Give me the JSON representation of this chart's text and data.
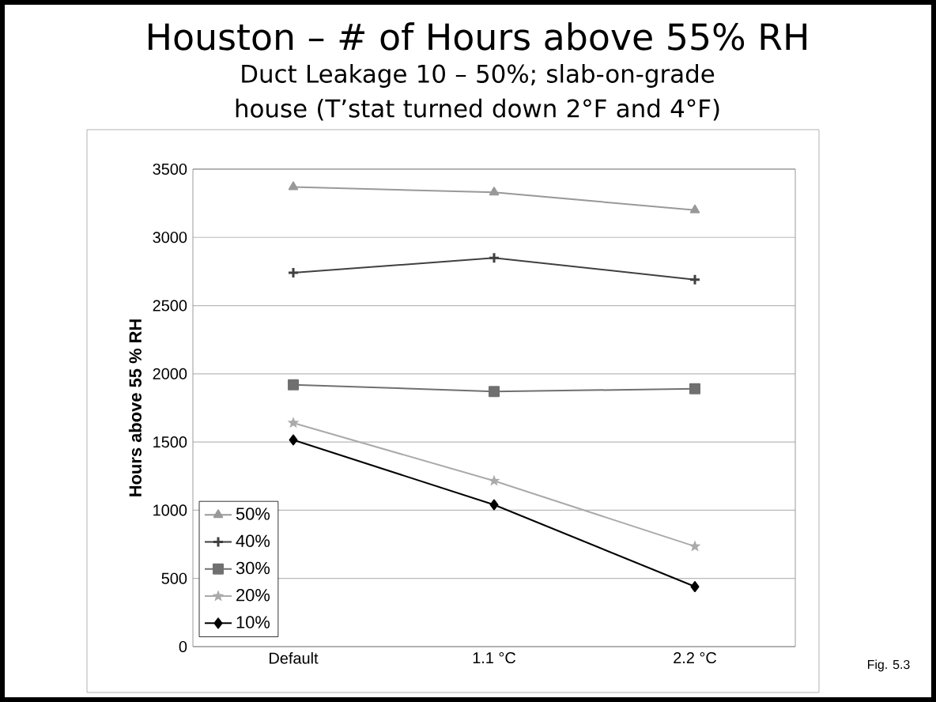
{
  "chart_data": {
    "type": "line",
    "title": "Houston – # of Hours above 55% RH",
    "subtitle": "Duct Leakage 10 – 50%; slab-on-grade house (T’stat turned down 2°F and 4°F)",
    "ylabel": "Hours above 55 % RH",
    "categories": [
      "Default",
      "1.1 °C",
      "2.2 °C"
    ],
    "series": [
      {
        "name": "50%",
        "color": "#999999",
        "marker": "triangle",
        "values": [
          3370,
          3330,
          3200
        ]
      },
      {
        "name": "40%",
        "color": "#404040",
        "marker": "cross",
        "values": [
          2740,
          2850,
          2690
        ]
      },
      {
        "name": "30%",
        "color": "#707070",
        "marker": "square",
        "values": [
          1920,
          1870,
          1890
        ]
      },
      {
        "name": "20%",
        "color": "#aaaaaa",
        "marker": "star",
        "values": [
          1640,
          1215,
          735
        ]
      },
      {
        "name": "10%",
        "color": "#000000",
        "marker": "diamond",
        "values": [
          1515,
          1040,
          440
        ]
      }
    ],
    "ylim": [
      0,
      3500
    ],
    "yticks": [
      0,
      500,
      1000,
      1500,
      2000,
      2500,
      3000,
      3500
    ],
    "grid": "y",
    "legend": "bottom left",
    "annotations": [
      "Fig. 5.3"
    ]
  }
}
